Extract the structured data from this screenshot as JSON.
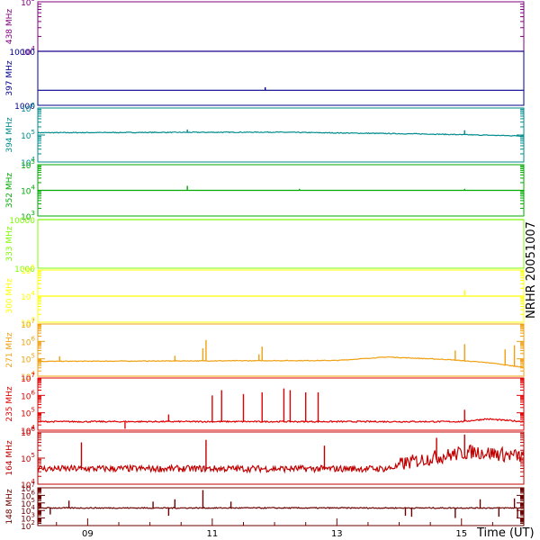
{
  "chart_data": {
    "type": "line",
    "title": "NRHR 20051007",
    "xlabel": "Time (UT)",
    "x_ticks": [
      "09",
      "11",
      "13",
      "15"
    ],
    "xlim": [
      8.2,
      16.0
    ],
    "panels": [
      {
        "name": "438 MHz",
        "color": "#800080",
        "log": true,
        "ylim": [
          10000,
          100000
        ],
        "y_ticks": [
          {
            "v": 10000,
            "base": "10",
            "exp": "4"
          },
          {
            "v": 100000,
            "base": "10",
            "exp": "5"
          }
        ],
        "baseline": 10000,
        "noise": 0.0,
        "bursts": [],
        "trend": []
      },
      {
        "name": "397 MHz",
        "color": "#00008b",
        "log": false,
        "ylim": [
          1000,
          10000
        ],
        "y_ticks": [
          {
            "v": 1000,
            "text": "1000"
          },
          {
            "v": 10000,
            "text": "10000"
          }
        ],
        "baseline": 3500,
        "noise": 0.0,
        "bursts": [
          {
            "t": 11.85,
            "v": 4000
          }
        ],
        "trend": []
      },
      {
        "name": "394 MHz",
        "color": "#008b8b",
        "log": true,
        "ylim": [
          10000,
          1000000
        ],
        "y_ticks": [
          {
            "v": 10000,
            "base": "10",
            "exp": "4"
          },
          {
            "v": 100000,
            "base": "10",
            "exp": "5"
          },
          {
            "v": 1000000,
            "base": "10",
            "exp": "6"
          }
        ],
        "baseline": 120000,
        "noise": 0.03,
        "bursts": [
          {
            "t": 10.6,
            "v": 160000
          },
          {
            "t": 15.05,
            "v": 150000
          }
        ],
        "trend": [
          [
            8.2,
            0
          ],
          [
            12.0,
            0.02
          ],
          [
            14.5,
            -0.05
          ],
          [
            16.0,
            -0.12
          ]
        ]
      },
      {
        "name": "352 MHz",
        "color": "#00aa00",
        "log": true,
        "ylim": [
          1000,
          100000
        ],
        "y_ticks": [
          {
            "v": 1000,
            "base": "10",
            "exp": "3"
          },
          {
            "v": 10000,
            "base": "10",
            "exp": "4"
          },
          {
            "v": 100000,
            "base": "10",
            "exp": "5"
          }
        ],
        "baseline": 10000,
        "noise": 0.0,
        "bursts": [
          {
            "t": 10.6,
            "v": 15000
          },
          {
            "t": 12.4,
            "v": 11500
          },
          {
            "t": 15.05,
            "v": 11500
          }
        ],
        "trend": []
      },
      {
        "name": "333 MHz",
        "color": "#7cfc00",
        "log": false,
        "ylim": [
          1000,
          10000
        ],
        "y_ticks": [
          {
            "v": 1000,
            "text": "1000"
          },
          {
            "v": 10000,
            "text": "10000"
          }
        ],
        "baseline": 10000,
        "noise": 0.0,
        "bursts": [],
        "trend": []
      },
      {
        "name": "300 MHz",
        "color": "#ffff00",
        "log": true,
        "ylim": [
          1000,
          100000
        ],
        "y_ticks": [
          {
            "v": 1000,
            "base": "10",
            "exp": "3"
          },
          {
            "v": 10000,
            "base": "10",
            "exp": "4"
          },
          {
            "v": 100000,
            "base": "10",
            "exp": "5"
          }
        ],
        "baseline": 10000,
        "noise": 0.0,
        "bursts": [
          {
            "t": 15.05,
            "v": 17000
          }
        ],
        "trend": []
      },
      {
        "name": "271 MHz",
        "color": "#f0a010",
        "log": true,
        "ylim": [
          10000,
          10000000
        ],
        "y_ticks": [
          {
            "v": 10000,
            "base": "10",
            "exp": "4"
          },
          {
            "v": 100000,
            "base": "10",
            "exp": "5"
          },
          {
            "v": 1000000,
            "base": "10",
            "exp": "6"
          },
          {
            "v": 10000000,
            "base": "10",
            "exp": "7"
          }
        ],
        "baseline": 70000,
        "noise": 0.04,
        "bursts": [
          {
            "t": 8.55,
            "v": 140000
          },
          {
            "t": 10.4,
            "v": 150000
          },
          {
            "t": 10.85,
            "v": 400000
          },
          {
            "t": 10.9,
            "v": 1200000
          },
          {
            "t": 11.75,
            "v": 180000
          },
          {
            "t": 11.8,
            "v": 500000
          },
          {
            "t": 14.9,
            "v": 300000
          },
          {
            "t": 15.05,
            "v": 700000
          },
          {
            "t": 15.7,
            "v": 350000
          },
          {
            "t": 15.85,
            "v": 600000
          }
        ],
        "trend": [
          [
            8.2,
            0
          ],
          [
            13.0,
            0.05
          ],
          [
            13.8,
            0.25
          ],
          [
            14.8,
            0.1
          ],
          [
            15.5,
            -0.1
          ],
          [
            16.0,
            -0.35
          ]
        ]
      },
      {
        "name": "235 MHz",
        "color": "#e00000",
        "log": true,
        "ylim": [
          10000,
          10000000
        ],
        "y_ticks": [
          {
            "v": 10000,
            "base": "10",
            "exp": "4"
          },
          {
            "v": 100000,
            "base": "10",
            "exp": "5"
          },
          {
            "v": 1000000,
            "base": "10",
            "exp": "6"
          },
          {
            "v": 10000000,
            "base": "10",
            "exp": "7"
          }
        ],
        "baseline": 30000,
        "noise": 0.08,
        "bursts": [
          {
            "t": 9.6,
            "v": 12000
          },
          {
            "t": 10.3,
            "v": 80000
          },
          {
            "t": 11.0,
            "v": 1000000
          },
          {
            "t": 11.15,
            "v": 2000000
          },
          {
            "t": 11.5,
            "v": 1200000
          },
          {
            "t": 11.8,
            "v": 1500000
          },
          {
            "t": 12.15,
            "v": 2500000
          },
          {
            "t": 12.25,
            "v": 2000000
          },
          {
            "t": 12.5,
            "v": 1500000
          },
          {
            "t": 12.7,
            "v": 1500000
          },
          {
            "t": 15.05,
            "v": 150000
          }
        ],
        "trend": [
          [
            8.2,
            0
          ],
          [
            15.0,
            0
          ],
          [
            15.4,
            0.15
          ],
          [
            16.0,
            0
          ]
        ]
      },
      {
        "name": "164 MHz",
        "color": "#c00000",
        "log": true,
        "ylim": [
          10000,
          1000000
        ],
        "y_ticks": [
          {
            "v": 10000,
            "base": "10",
            "exp": "4"
          },
          {
            "v": 100000,
            "base": "10",
            "exp": "5"
          },
          {
            "v": 1000000,
            "base": "10",
            "exp": "6"
          }
        ],
        "baseline": 35000,
        "noise": 0.25,
        "bursts": [
          {
            "t": 8.9,
            "v": 400000
          },
          {
            "t": 10.9,
            "v": 500000
          },
          {
            "t": 12.8,
            "v": 300000
          },
          {
            "t": 14.6,
            "v": 600000
          },
          {
            "t": 15.05,
            "v": 800000
          }
        ],
        "trend": [
          [
            8.2,
            0
          ],
          [
            13.8,
            0
          ],
          [
            14.5,
            0.35
          ],
          [
            15.2,
            0.6
          ],
          [
            16.0,
            0.4
          ]
        ]
      },
      {
        "name": "148 MHz",
        "color": "#6b0000",
        "log": true,
        "ylim": [
          100,
          10000000
        ],
        "y_ticks": [
          {
            "v": 100,
            "base": "10",
            "exp": "2"
          },
          {
            "v": 1000,
            "base": "10",
            "exp": "3"
          },
          {
            "v": 10000,
            "base": "10",
            "exp": "4"
          },
          {
            "v": 100000,
            "base": "10",
            "exp": "5"
          },
          {
            "v": 1000000,
            "base": "10",
            "exp": "6"
          },
          {
            "v": 10000000,
            "base": "10",
            "exp": "7"
          }
        ],
        "baseline": 20000,
        "noise": 0.15,
        "bursts": [
          {
            "t": 8.7,
            "v": 200000
          },
          {
            "t": 10.05,
            "v": 150000
          },
          {
            "t": 10.4,
            "v": 300000
          },
          {
            "t": 10.85,
            "v": 5000000
          },
          {
            "t": 11.3,
            "v": 150000
          },
          {
            "t": 15.3,
            "v": 300000
          },
          {
            "t": 15.85,
            "v": 400000
          }
        ],
        "dips": [
          {
            "t": 8.4,
            "v": 3000
          },
          {
            "t": 10.3,
            "v": 2000
          },
          {
            "t": 14.1,
            "v": 2000
          },
          {
            "t": 14.2,
            "v": 1500
          },
          {
            "t": 14.9,
            "v": 1000
          },
          {
            "t": 15.6,
            "v": 1500
          },
          {
            "t": 15.9,
            "v": 1000
          }
        ],
        "trend": []
      }
    ]
  }
}
